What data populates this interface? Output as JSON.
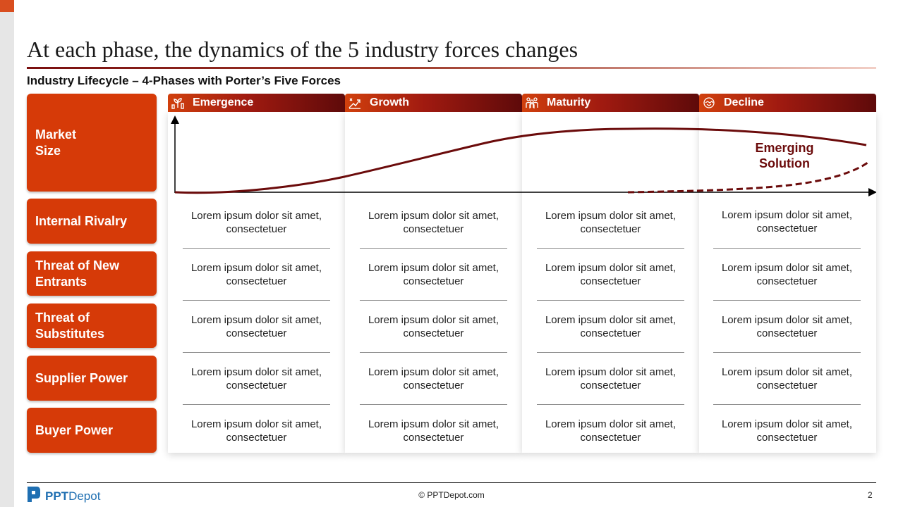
{
  "slide": {
    "title": "At each phase, the dynamics of the 5 industry forces changes",
    "subtitle": "Industry Lifecycle – 4-Phases with Porter’s Five Forces",
    "page_number": "2"
  },
  "colors": {
    "accent": "#d63a08",
    "dark_red": "#6b0b0b",
    "header_start": "#d1400d",
    "header_end": "#5e0a0a"
  },
  "row_labels": {
    "market_size": "Market Size",
    "internal_rivalry": "Internal Rivalry",
    "threat_new_entrants": "Threat of New Entrants",
    "threat_substitutes": "Threat of Substitutes",
    "supplier_power": "Supplier Power",
    "buyer_power": "Buyer Power"
  },
  "phases": [
    {
      "label": "Emergence",
      "icon": "seedling-hand-icon"
    },
    {
      "label": "Growth",
      "icon": "growth-chart-icon"
    },
    {
      "label": "Maturity",
      "icon": "people-group-icon"
    },
    {
      "label": "Decline",
      "icon": "handshake-icon"
    }
  ],
  "cells": [
    [
      "Lorem ipsum dolor sit amet, consectetuer",
      "Lorem ipsum dolor sit amet, consectetuer",
      "Lorem ipsum dolor sit amet, consectetuer",
      "Lorem ipsum dolor sit amet, consectetuer"
    ],
    [
      "Lorem ipsum dolor sit amet, consectetuer",
      "Lorem ipsum dolor sit amet, consectetuer",
      "Lorem ipsum dolor sit amet, consectetuer",
      "Lorem ipsum dolor sit amet, consectetuer"
    ],
    [
      "Lorem ipsum dolor sit amet, consectetuer",
      "Lorem ipsum dolor sit amet, consectetuer",
      "Lorem ipsum dolor sit amet, consectetuer",
      "Lorem ipsum dolor sit amet, consectetuer"
    ],
    [
      "Lorem ipsum dolor sit amet, consectetuer",
      "Lorem ipsum dolor sit amet, consectetuer",
      "Lorem ipsum dolor sit amet, consectetuer",
      "Lorem ipsum dolor sit amet, consectetuer"
    ],
    [
      "Lorem ipsum dolor sit amet, consectetuer",
      "Lorem ipsum dolor sit amet, consectetuer",
      "Lorem ipsum dolor sit amet, consectetuer",
      "Lorem ipsum dolor sit amet, consectetuer"
    ]
  ],
  "chart": {
    "emerging_label_line1": "Emerging",
    "emerging_label_line2": "Solution"
  },
  "footer": {
    "logo_bold": "PPT",
    "logo_regular": "Depot",
    "copyright": "© PPTDepot.com"
  }
}
